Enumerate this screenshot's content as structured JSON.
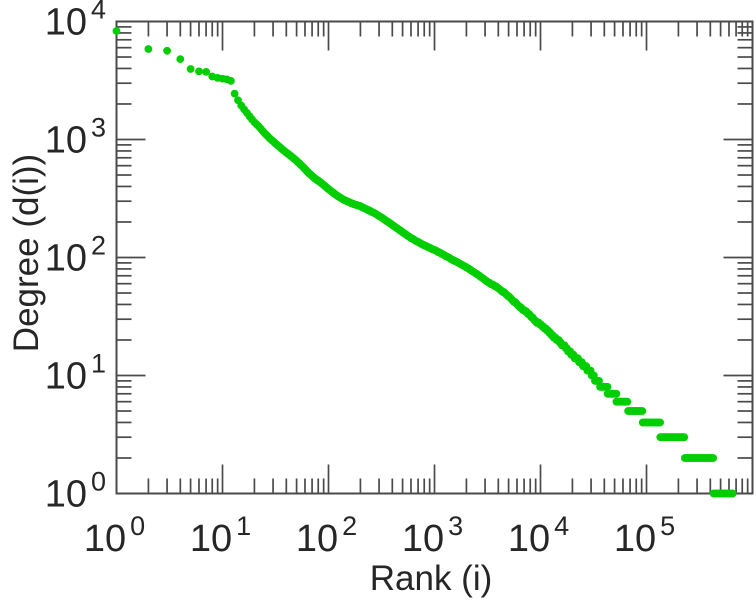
{
  "chart_data": {
    "type": "scatter",
    "title": "",
    "xlabel": "Rank (i)",
    "ylabel": "Degree (d(i))",
    "x_scale": "log",
    "y_scale": "log",
    "xlim": [
      1,
      1000000
    ],
    "ylim": [
      1,
      10000
    ],
    "grid": false,
    "legend": false,
    "marker_color": "#00CE00",
    "axis_color": "#4a4a4a",
    "text_color": "#262626",
    "x_tick_labels": [
      {
        "base": "10",
        "sup": "0"
      },
      {
        "base": "10",
        "sup": "1"
      },
      {
        "base": "10",
        "sup": "2"
      },
      {
        "base": "10",
        "sup": "3"
      },
      {
        "base": "10",
        "sup": "4"
      },
      {
        "base": "10",
        "sup": "5"
      }
    ],
    "y_tick_labels": [
      {
        "base": "10",
        "sup": "0"
      },
      {
        "base": "10",
        "sup": "1"
      },
      {
        "base": "10",
        "sup": "2"
      },
      {
        "base": "10",
        "sup": "3"
      },
      {
        "base": "10",
        "sup": "4"
      }
    ],
    "points": [
      [
        1,
        8300
      ],
      [
        2,
        5850
      ],
      [
        3,
        5650
      ],
      [
        4,
        4800
      ],
      [
        5,
        3960
      ],
      [
        6,
        3780
      ],
      [
        7,
        3740
      ],
      [
        8,
        3420
      ],
      [
        9,
        3330
      ],
      [
        10,
        3280
      ],
      [
        11,
        3230
      ],
      [
        12,
        3140
      ],
      [
        13,
        2450
      ],
      [
        14,
        2150
      ],
      [
        15,
        1940
      ],
      [
        16,
        1800
      ],
      [
        17,
        1680
      ],
      [
        18,
        1570
      ],
      [
        20,
        1400
      ],
      [
        22,
        1290
      ],
      [
        25,
        1130
      ],
      [
        28,
        1020
      ],
      [
        31,
        940
      ],
      [
        35,
        855
      ],
      [
        40,
        775
      ],
      [
        45,
        715
      ],
      [
        50,
        660
      ],
      [
        57,
        590
      ],
      [
        65,
        520
      ],
      [
        75,
        465
      ],
      [
        85,
        430
      ],
      [
        100,
        380
      ],
      [
        120,
        335
      ],
      [
        140,
        308
      ],
      [
        170,
        285
      ],
      [
        200,
        272
      ],
      [
        240,
        251
      ],
      [
        280,
        234
      ],
      [
        330,
        213
      ],
      [
        400,
        189
      ],
      [
        480,
        168
      ],
      [
        570,
        151
      ],
      [
        680,
        137
      ],
      [
        800,
        127
      ],
      [
        950,
        118
      ],
      [
        1100,
        111
      ],
      [
        1300,
        102
      ],
      [
        1500,
        95
      ],
      [
        1800,
        87
      ],
      [
        2200,
        78
      ],
      [
        2700,
        69
      ],
      [
        3300,
        61
      ],
      [
        4000,
        55
      ],
      [
        5000,
        47
      ],
      [
        6200,
        39
      ],
      [
        7500,
        34
      ],
      [
        9000,
        29
      ],
      [
        11000,
        25
      ],
      [
        13500,
        21
      ],
      [
        16500,
        18
      ],
      [
        20000,
        15
      ],
      [
        24000,
        13
      ],
      [
        29000,
        11
      ],
      [
        34000,
        9
      ],
      [
        39000,
        8
      ],
      [
        43000,
        7
      ],
      [
        52000,
        6
      ],
      [
        67000,
        5
      ],
      [
        92000,
        4
      ],
      [
        135000,
        3
      ],
      [
        230000,
        2
      ],
      [
        430000,
        1
      ],
      [
        650000,
        1
      ]
    ]
  }
}
